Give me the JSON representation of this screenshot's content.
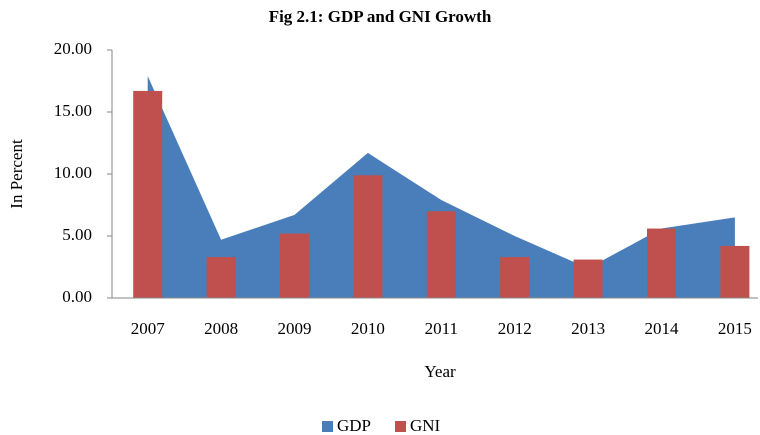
{
  "chart_data": {
    "type": "combo",
    "title": "Fig 2.1: GDP and GNI Growth",
    "x_label": "Year",
    "y_label": "In Percent",
    "categories": [
      "2007",
      "2008",
      "2009",
      "2010",
      "2011",
      "2012",
      "2013",
      "2014",
      "2015"
    ],
    "series": [
      {
        "name": "GDP",
        "type": "area",
        "color": "#4a7ebb",
        "values": [
          17.9,
          4.7,
          6.7,
          11.7,
          7.9,
          5.0,
          2.4,
          5.6,
          6.5
        ]
      },
      {
        "name": "GNI",
        "type": "bar",
        "color": "#c0504d",
        "values": [
          16.7,
          3.3,
          5.2,
          9.9,
          7.0,
          3.3,
          3.1,
          5.6,
          4.2
        ]
      }
    ],
    "ylim": [
      0,
      20
    ],
    "yticks": [
      {
        "value": 0,
        "label": "0.00"
      },
      {
        "value": 5,
        "label": "5.00"
      },
      {
        "value": 10,
        "label": "10.00"
      },
      {
        "value": 15,
        "label": "15.00"
      },
      {
        "value": 20,
        "label": "20.00"
      }
    ],
    "grid": false,
    "legend": "bottom"
  }
}
